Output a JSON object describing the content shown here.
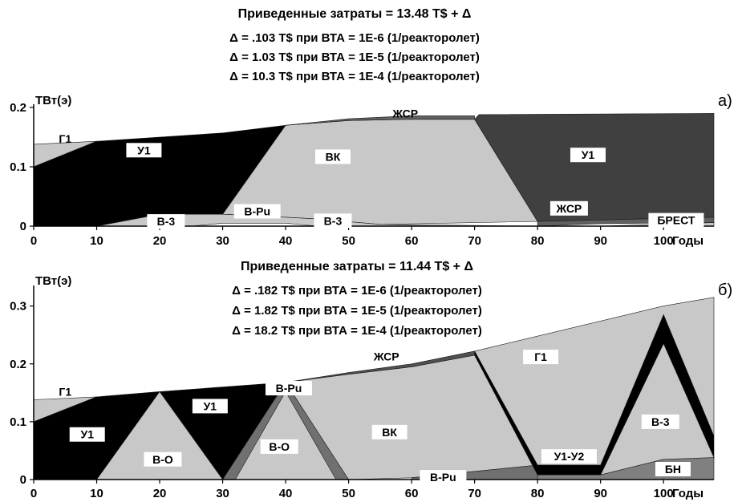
{
  "chart_data": [
    {
      "type": "area",
      "panel_label": "а)",
      "title": "Приведенные затраты = 13.48 T$ + Δ",
      "subtitle_lines": [
        "Δ = .103 T$  при ВТА = 1E-6 (1/реакторолет)",
        "Δ = 1.03 T$  при ВТА = 1E-5 (1/реакторолет)",
        "Δ = 10.3 T$  при ВТА = 1E-4 (1/реакторолет)"
      ],
      "ylabel": "ТВт(э)",
      "xlabel": "Годы",
      "xlim": [
        0,
        108
      ],
      "ylim": [
        0,
        0.2
      ],
      "x_ticks": [
        "0",
        "10",
        "20",
        "30",
        "40",
        "50",
        "60",
        "70",
        "80",
        "90",
        "100"
      ],
      "y_ticks": [
        "0",
        "0.1",
        "0.2"
      ],
      "regions": [
        {
          "name": "Г1",
          "color": "#c8c8c8",
          "points": [
            [
              0,
              0.1
            ],
            [
              10,
              0.143
            ],
            [
              0,
              0.138
            ]
          ]
        },
        {
          "name": "У1",
          "color": "#000000",
          "points": [
            [
              0,
              0
            ],
            [
              0,
              0.1
            ],
            [
              10,
              0.143
            ],
            [
              30,
              0.157
            ],
            [
              40,
              0.17
            ],
            [
              30,
              0.02
            ],
            [
              20,
              0.02
            ],
            [
              10,
              0
            ]
          ]
        },
        {
          "name": "ВК",
          "color": "#c8c8c8",
          "points": [
            [
              30,
              0.02
            ],
            [
              40,
              0.17
            ],
            [
              50,
              0.178
            ],
            [
              60,
              0.18
            ],
            [
              70,
              0.18
            ],
            [
              80,
              0.008
            ],
            [
              55,
              0.003
            ],
            [
              45,
              0.012
            ],
            [
              40,
              0.015
            ]
          ]
        },
        {
          "name": "У1",
          "color": "#404040",
          "points": [
            [
              70,
              0.18
            ],
            [
              70.7,
              0.188
            ],
            [
              108,
              0.19
            ],
            [
              108,
              0.015
            ],
            [
              80,
              0.008
            ]
          ]
        },
        {
          "name": "ЖСР",
          "color": "#606060",
          "points": [
            [
              40,
              0.17
            ],
            [
              50,
              0.181
            ],
            [
              60,
              0.186
            ],
            [
              70,
              0.186
            ],
            [
              70,
              0.18
            ],
            [
              60,
              0.18
            ],
            [
              50,
              0.178
            ]
          ]
        },
        {
          "name": "В-3",
          "color": "#c8c8c8",
          "points": [
            [
              10,
              0
            ],
            [
              20,
              0.02
            ],
            [
              30,
              0.02
            ],
            [
              40,
              0.015
            ],
            [
              45,
              0.012
            ],
            [
              55,
              0.003
            ],
            [
              80,
              0
            ],
            [
              45,
              0
            ],
            [
              40,
              0.005
            ],
            [
              30,
              0.005
            ],
            [
              25,
              0
            ]
          ]
        },
        {
          "name": "ЖСР",
          "color": "#606060",
          "points": [
            [
              80,
              0
            ],
            [
              80,
              0.008
            ],
            [
              108,
              0.015
            ],
            [
              108,
              0.006
            ],
            [
              90,
              0.004
            ]
          ]
        },
        {
          "name": "БРЕСТ",
          "color": "#c8c8c8",
          "points": [
            [
              90,
              0
            ],
            [
              108,
              0.006
            ],
            [
              108,
              0
            ]
          ]
        }
      ],
      "labels": [
        {
          "text": "Г1",
          "x": 5,
          "y": 0.147,
          "box": false
        },
        {
          "text": "У1",
          "x": 17.5,
          "y": 0.128,
          "box": true
        },
        {
          "text": "ВК",
          "x": 47.5,
          "y": 0.117,
          "box": true
        },
        {
          "text": "У1",
          "x": 88,
          "y": 0.12,
          "box": true
        },
        {
          "text": "ЖСР",
          "x": 59,
          "y": 0.19,
          "box": false
        },
        {
          "text": "В-3",
          "x": 21,
          "y": 0.008,
          "box": true
        },
        {
          "text": "В-Pu",
          "x": 35.5,
          "y": 0.025,
          "box": true
        },
        {
          "text": "В-3",
          "x": 47.5,
          "y": 0.009,
          "box": true
        },
        {
          "text": "ЖСР",
          "x": 85,
          "y": 0.03,
          "box": true
        },
        {
          "text": "БРЕСТ",
          "x": 102,
          "y": 0.01,
          "box": true
        }
      ]
    },
    {
      "type": "area",
      "panel_label": "б)",
      "title": "Приведенные затраты = 11.44 T$ + Δ",
      "subtitle_lines": [
        "Δ = .182 T$  при ВТА = 1E-6 (1/реакторолет)",
        "Δ = 1.82 T$  при ВТА = 1E-5 (1/реакторолет)",
        "Δ = 18.2 T$  при ВТА = 1E-4 (1/реакторолет)"
      ],
      "ylabel": "ТВт(э)",
      "xlabel": "Годы",
      "xlim": [
        0,
        108
      ],
      "ylim": [
        0,
        0.33
      ],
      "x_ticks": [
        "0",
        "10",
        "20",
        "30",
        "40",
        "50",
        "60",
        "70",
        "80",
        "90",
        "100"
      ],
      "y_ticks": [
        "0",
        "0.1",
        "0.2",
        "0.3"
      ],
      "regions": [
        {
          "name": "Г1",
          "color": "#c8c8c8",
          "points": [
            [
              0,
              0.1
            ],
            [
              10,
              0.143
            ],
            [
              0,
              0.138
            ]
          ]
        },
        {
          "name": "У1",
          "color": "#000000",
          "points": [
            [
              0,
              0
            ],
            [
              0,
              0.1
            ],
            [
              10,
              0.143
            ],
            [
              20,
              0.152
            ],
            [
              10,
              0
            ]
          ]
        },
        {
          "name": "У1",
          "color": "#000000",
          "points": [
            [
              20,
              0.152
            ],
            [
              30,
              0.16
            ],
            [
              40,
              0.168
            ],
            [
              30,
              0
            ]
          ]
        },
        {
          "name": "В-О",
          "color": "#c8c8c8",
          "points": [
            [
              10,
              0
            ],
            [
              20,
              0.152
            ],
            [
              30,
              0
            ]
          ]
        },
        {
          "name": "В-О",
          "color": "#c8c8c8",
          "points": [
            [
              30,
              0
            ],
            [
              40,
              0.152
            ],
            [
              50,
              0
            ]
          ]
        },
        {
          "name": "В-Pu",
          "color": "#707070",
          "points": [
            [
              30,
              0
            ],
            [
              40,
              0.168
            ],
            [
              50,
              0
            ],
            [
              48,
              0
            ],
            [
              40,
              0.152
            ],
            [
              32,
              0
            ]
          ]
        },
        {
          "name": "ВК",
          "color": "#c8c8c8",
          "points": [
            [
              40,
              0.168
            ],
            [
              50,
              0.182
            ],
            [
              60,
              0.195
            ],
            [
              70,
              0.215
            ],
            [
              80,
              0.025
            ],
            [
              60,
              0.003
            ],
            [
              50,
              0
            ]
          ]
        },
        {
          "name": "ЖСР",
          "color": "#505050",
          "points": [
            [
              40,
              0.168
            ],
            [
              50,
              0.185
            ],
            [
              60,
              0.2
            ],
            [
              70,
              0.222
            ],
            [
              70,
              0.215
            ],
            [
              60,
              0.195
            ],
            [
              50,
              0.182
            ]
          ]
        },
        {
          "name": "В-Pu",
          "color": "#707070",
          "points": [
            [
              60,
              0
            ],
            [
              60,
              0.003
            ],
            [
              80,
              0.025
            ],
            [
              80,
              0
            ]
          ]
        },
        {
          "name": "Г1",
          "color": "#c8c8c8",
          "points": [
            [
              70,
              0.222
            ],
            [
              100,
              0.3
            ],
            [
              108,
              0.315
            ],
            [
              108,
              0.075
            ],
            [
              100,
              0.285
            ],
            [
              90,
              0.025
            ],
            [
              80,
              0.025
            ]
          ]
        },
        {
          "name": "У1-У2",
          "color": "#000000",
          "points": [
            [
              70,
              0.215
            ],
            [
              70,
              0.222
            ],
            [
              80,
              0.025
            ],
            [
              90,
              0.025
            ],
            [
              100,
              0.285
            ],
            [
              108,
              0.075
            ],
            [
              108,
              0.038
            ],
            [
              100,
              0.235
            ],
            [
              90,
              0.008
            ],
            [
              80,
              0.008
            ]
          ]
        },
        {
          "name": "В-3",
          "color": "#c8c8c8",
          "points": [
            [
              90,
              0.008
            ],
            [
              100,
              0.235
            ],
            [
              108,
              0.038
            ],
            [
              108,
              0.035
            ],
            [
              100,
              0.035
            ]
          ]
        },
        {
          "name": "БН",
          "color": "#808080",
          "points": [
            [
              80,
              0
            ],
            [
              80,
              0.008
            ],
            [
              90,
              0.008
            ],
            [
              100,
              0.035
            ],
            [
              108,
              0.038
            ],
            [
              108,
              0
            ]
          ]
        }
      ],
      "labels": [
        {
          "text": "Г1",
          "x": 5,
          "y": 0.152,
          "box": false
        },
        {
          "text": "У1",
          "x": 8.5,
          "y": 0.078,
          "box": true
        },
        {
          "text": "У1",
          "x": 28,
          "y": 0.127,
          "box": true
        },
        {
          "text": "В-Pu",
          "x": 40.5,
          "y": 0.158,
          "box": true
        },
        {
          "text": "В-О",
          "x": 20.5,
          "y": 0.035,
          "box": true
        },
        {
          "text": "В-О",
          "x": 39,
          "y": 0.057,
          "box": true
        },
        {
          "text": "ВК",
          "x": 56.5,
          "y": 0.082,
          "box": true
        },
        {
          "text": "ЖСР",
          "x": 56,
          "y": 0.213,
          "box": false
        },
        {
          "text": "В-Pu",
          "x": 65,
          "y": 0.004,
          "box": true
        },
        {
          "text": "Г1",
          "x": 80.5,
          "y": 0.212,
          "box": true
        },
        {
          "text": "У1-У2",
          "x": 85,
          "y": 0.04,
          "box": true
        },
        {
          "text": "В-3",
          "x": 99.5,
          "y": 0.1,
          "box": true
        },
        {
          "text": "БН",
          "x": 101.5,
          "y": 0.018,
          "box": true
        }
      ]
    }
  ]
}
